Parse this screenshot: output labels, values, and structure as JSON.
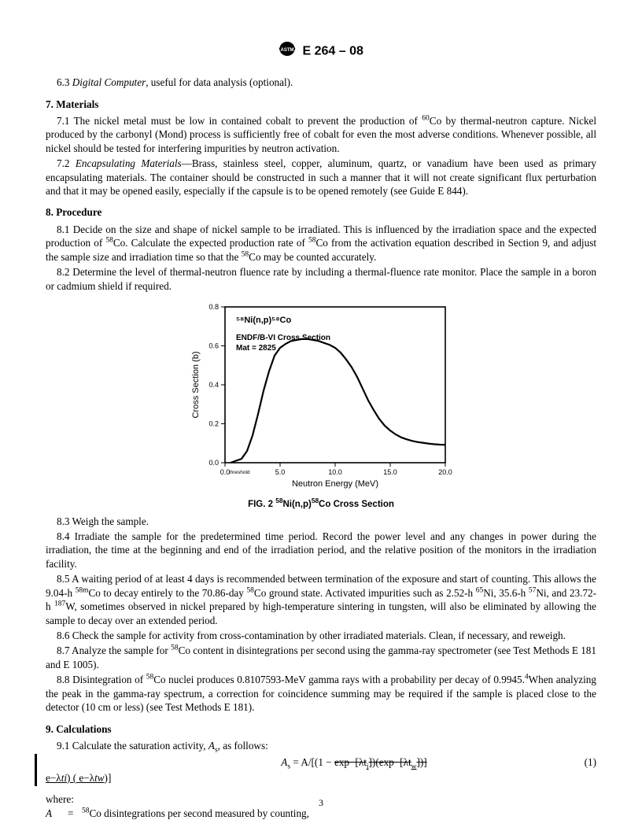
{
  "header": {
    "designation": "E 264 – 08"
  },
  "s6": {
    "p63": {
      "num": "6.3",
      "label": "Digital Computer",
      "rest": ", useful for data analysis (optional)."
    }
  },
  "s7": {
    "title": "7.  Materials",
    "p71a": "7.1 The nickel metal must be low in contained cobalt to prevent the production of ",
    "p71b": "Co by thermal-neutron capture. Nickel produced by the carbonyl (Mond) process is sufficiently free of cobalt for even the most adverse conditions. Whenever possible, all nickel should be tested for interfering impurities by neutron activation.",
    "p72num": "7.2 ",
    "p72label": "Encapsulating Materials",
    "p72rest": "—Brass, stainless steel, copper, aluminum, quartz, or vanadium have been used as primary encapsulating materials. The container should be constructed in such a manner that it will not create significant flux perturbation and that it may be opened easily, especially if the capsule is to be opened remotely (see Guide E 844)."
  },
  "s8": {
    "title": "8.  Procedure",
    "p81a": "8.1 Decide on the size and shape of nickel sample to be irradiated. This is influenced by the irradiation space and the expected production of ",
    "p81b": "Co. Calculate the expected production rate of ",
    "p81c": "Co from the activation equation described in Section 9, and adjust the sample size and irradiation time so that the ",
    "p81d": "Co may be counted accurately.",
    "p82": "8.2 Determine the level of thermal-neutron fluence rate by including a thermal-fluence rate monitor. Place the sample in a boron or cadmium shield if required.",
    "p83": "8.3 Weigh the sample.",
    "p84": "8.4 Irradiate the sample for the predetermined time period. Record the power level and any changes in power during the irradiation, the time at the beginning and end of the irradiation period, and the relative position of the monitors in the irradiation facility.",
    "p85a": "8.5 A waiting period of at least 4 days is recommended between termination of the exposure and start of counting. This allows the 9.04-h ",
    "p85b": "Co to decay entirely to the 70.86-day ",
    "p85c": "Co ground state. Activated impurities such as 2.52-h ",
    "p85d": "Ni, 35.6-h ",
    "p85e": "Ni, and 23.72-h ",
    "p85f": "W, sometimes observed in nickel prepared by high-temperature sintering in tungsten, will also be eliminated by allowing the sample to decay over an extended period.",
    "p86": "8.6 Check the sample for activity from cross-contamination by other irradiated materials. Clean, if necessary, and reweigh.",
    "p87a": "8.7 Analyze the sample for ",
    "p87b": "Co content in disintegrations per second using the gamma-ray spectrometer (see Test Methods E 181 and E 1005).",
    "p88a": "8.8 Disintegration of ",
    "p88b": "Co nuclei produces 0.8107593-MeV gamma rays with a probability per decay of 0.9945.",
    "p88c": "When analyzing the peak in the gamma-ray spectrum, a correction for coincidence summing may be required if the sample is placed close to the detector (10 cm or less) (see Test Methods E 181)."
  },
  "s9": {
    "title": "9.  Calculations",
    "p91a": "9.1 Calculate the saturation activity, ",
    "p91b": ", as follows:",
    "eq_lhs": "A",
    "eq_sub": "s",
    "eq_mid": " = A/[(1 − ",
    "eq_s1": "exp−[λt",
    "eq_s1sub": "i",
    "eq_s1b": "])(exp−[λt",
    "eq_s1sub2": "w",
    "eq_s1c": "])]",
    "eq_num": "(1)",
    "under_a": "e−λ",
    "under_b": "ti",
    "under_c": ") ( e−λ",
    "under_d": "tw",
    "under_e": ")]",
    "where": "where:",
    "where_A_sym": "A",
    "where_A_eq": "=",
    "where_A_def": "Co disintegrations per second measured by counting,"
  },
  "chart": {
    "type": "line",
    "title_top1": "⁵⁸Ni(n,p)⁵⁸Co",
    "title_top2": "ENDF/B-VI Cross Section",
    "title_top3": "Mat = 2825",
    "xlabel": "Neutron Energy (MeV)",
    "ylabel": "Cross Section (b)",
    "xlim": [
      0,
      20
    ],
    "ylim": [
      0,
      0.8
    ],
    "xticks": [
      0,
      5,
      10,
      15,
      20
    ],
    "yticks": [
      0.0,
      0.2,
      0.4,
      0.6,
      0.8
    ],
    "threshold_label": "threshold",
    "axis_color": "#000000",
    "line_color": "#000000",
    "background_color": "#ffffff",
    "line_width": 2.2,
    "label_fontsize": 11,
    "tick_fontsize": 9,
    "series": {
      "x": [
        0.5,
        1.0,
        1.5,
        2.0,
        2.5,
        3.0,
        3.5,
        4.0,
        4.5,
        5.0,
        5.5,
        6.0,
        6.5,
        7.0,
        7.5,
        8.0,
        8.5,
        9.0,
        9.5,
        10.0,
        10.5,
        11.0,
        11.5,
        12.0,
        12.5,
        13.0,
        13.5,
        14.0,
        14.5,
        15.0,
        15.5,
        16.0,
        16.5,
        17.0,
        17.5,
        18.0,
        18.5,
        19.0,
        19.5,
        20.0
      ],
      "y": [
        0.0,
        0.01,
        0.02,
        0.06,
        0.14,
        0.25,
        0.37,
        0.47,
        0.55,
        0.59,
        0.61,
        0.625,
        0.63,
        0.635,
        0.635,
        0.63,
        0.625,
        0.615,
        0.605,
        0.59,
        0.565,
        0.53,
        0.49,
        0.44,
        0.38,
        0.32,
        0.27,
        0.225,
        0.19,
        0.165,
        0.145,
        0.13,
        0.12,
        0.112,
        0.106,
        0.102,
        0.098,
        0.095,
        0.093,
        0.092
      ]
    },
    "caption_a": "FIG. 2 ",
    "caption_b": "Ni(n,p)",
    "caption_c": "Co Cross Section"
  },
  "page_number": "3"
}
